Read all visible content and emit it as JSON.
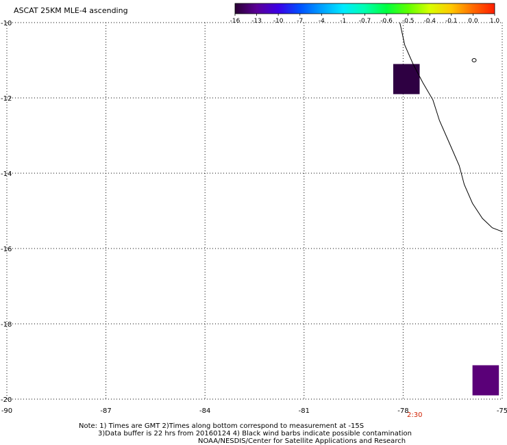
{
  "chart_data": {
    "type": "heatmap",
    "title": "ASCAT 25KM MLE-4 ascending",
    "x_ticks": [
      "-90",
      "-87",
      "-84",
      "-81",
      "-78",
      "-75"
    ],
    "y_ticks": [
      "-10",
      "-12",
      "-14",
      "-16",
      "-18",
      "-20"
    ],
    "xlim": [
      -90,
      -75
    ],
    "ylim": [
      -20,
      -10
    ],
    "grid": true,
    "colorbar": {
      "labels": [
        "-16",
        "-13",
        "-10",
        "-7",
        "-4",
        "-1",
        "-0.7",
        "-0.6",
        "-0.5",
        "-0.4",
        "-0.1",
        "0.0",
        "1.0"
      ],
      "colors": [
        "#2a0033",
        "#5a0096",
        "#3c00e6",
        "#0050ff",
        "#00a0ff",
        "#00eaff",
        "#00ffb0",
        "#00ff40",
        "#60ff00",
        "#d8ff00",
        "#ffc800",
        "#ff6a00",
        "#ff1e00"
      ]
    },
    "cells": [
      {
        "lon": [
          -78.3,
          -77.5
        ],
        "lat": [
          -11.9,
          -11.1
        ],
        "value": -16,
        "color": "#2e0042"
      },
      {
        "lon": [
          -75.9,
          -75.1
        ],
        "lat": [
          -19.9,
          -19.1
        ],
        "value": -13,
        "color": "#5a0078"
      }
    ],
    "coastline": [
      [
        -78.1,
        -10.0
      ],
      [
        -77.95,
        -10.6
      ],
      [
        -77.7,
        -11.1
      ],
      [
        -77.4,
        -11.6
      ],
      [
        -77.1,
        -12.05
      ],
      [
        -76.9,
        -12.6
      ],
      [
        -76.6,
        -13.2
      ],
      [
        -76.3,
        -13.8
      ],
      [
        -76.15,
        -14.3
      ],
      [
        -75.9,
        -14.8
      ],
      [
        -75.6,
        -15.2
      ],
      [
        -75.3,
        -15.45
      ],
      [
        -75.0,
        -15.55
      ]
    ],
    "time_label": "2:30",
    "time_label_lon": -77.65,
    "time_label_color": "#d02000",
    "footnotes": [
      "Note: 1) Times are GMT 2)Times along bottom correspond to measurement at -15S",
      "3)Data buffer is 22 hrs from 20160124 4) Black wind barbs indicate possible contamination",
      "NOAA/NESDIS/Center for Satellite Applications and Research"
    ]
  }
}
